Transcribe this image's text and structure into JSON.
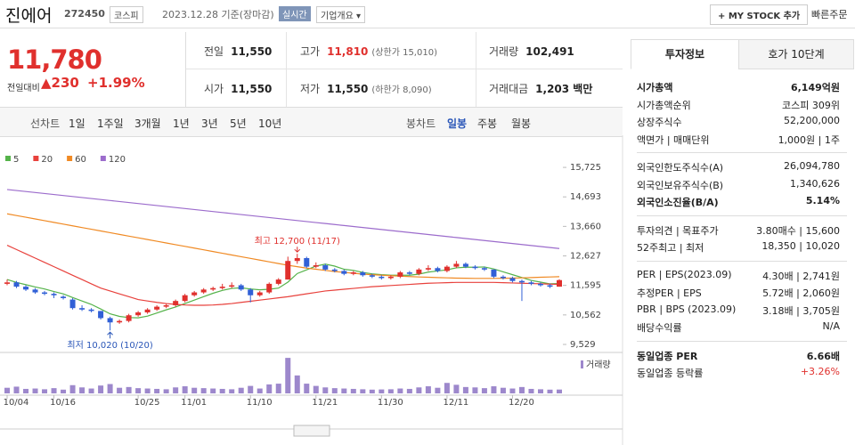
{
  "header": {
    "name": "진에어",
    "code": "272450",
    "market": "코스피",
    "date": "2023.12.28 기준(장마감)",
    "realtime": "실시간",
    "company_menu": "기업개요 ▾",
    "mystock": "+ MY STOCK 추가",
    "quick_order": "빠른주문"
  },
  "price": {
    "current": "11,780",
    "change_label": "전일대비",
    "change": "▲230",
    "change_rate": "+1.99%"
  },
  "stats": [
    [
      {
        "label": "전일",
        "value": "11,550"
      },
      {
        "label": "고가",
        "value": "11,810",
        "note": "(상한가 15,010)"
      },
      {
        "label": "거래량",
        "value": "102,491"
      }
    ],
    [
      {
        "label": "시가",
        "value": "11,550"
      },
      {
        "label": "저가",
        "value": "11,550",
        "note": "(하한가 8,090)"
      },
      {
        "label": "거래대금",
        "value": "1,203 백만"
      }
    ]
  ],
  "period_tabs": {
    "line_label": "선차트",
    "line": [
      "1일",
      "1주일",
      "3개월",
      "1년",
      "3년",
      "5년",
      "10년"
    ],
    "candle_label": "봉차트",
    "candle": [
      "일봉",
      "주봉",
      "월봉"
    ]
  },
  "chart": {
    "type": "candlestick",
    "up_color": "#e0302d",
    "down_color": "#3160d6",
    "ylim": [
      9280,
      16350
    ],
    "yticks": [
      {
        "value": 15725,
        "label": "15,725"
      },
      {
        "value": 14693,
        "label": "14,693"
      },
      {
        "value": 13660,
        "label": "13,660"
      },
      {
        "value": 12627,
        "label": "12,627"
      },
      {
        "value": 11595,
        "label": "11,595"
      },
      {
        "value": 10562,
        "label": "10,562"
      },
      {
        "value": 9529,
        "label": "9,529"
      }
    ],
    "categories": [
      "10/04",
      null,
      null,
      null,
      null,
      "10/16",
      null,
      null,
      null,
      null,
      null,
      null,
      null,
      null,
      "10/25",
      null,
      null,
      null,
      null,
      "11/01",
      null,
      null,
      null,
      null,
      null,
      null,
      "11/10",
      null,
      null,
      null,
      null,
      null,
      null,
      "11/21",
      null,
      null,
      null,
      null,
      null,
      null,
      "11/30",
      null,
      null,
      null,
      null,
      null,
      null,
      "12/11",
      null,
      null,
      null,
      null,
      null,
      null,
      "12/20",
      null,
      null,
      null,
      null,
      null
    ],
    "candles": [
      [
        11650,
        11800,
        11600,
        11700
      ],
      [
        11700,
        11750,
        11500,
        11550
      ],
      [
        11550,
        11600,
        11400,
        11450
      ],
      [
        11450,
        11500,
        11300,
        11350
      ],
      [
        11350,
        11400,
        11250,
        11300
      ],
      [
        11300,
        11350,
        11150,
        11250
      ],
      [
        11200,
        11250,
        11100,
        11150
      ],
      [
        11100,
        11150,
        10750,
        10800
      ],
      [
        10800,
        10900,
        10700,
        10750
      ],
      [
        10750,
        10800,
        10650,
        10700
      ],
      [
        10700,
        10700,
        10400,
        10450
      ],
      [
        10450,
        10500,
        10020,
        10300
      ],
      [
        10300,
        10400,
        10250,
        10350
      ],
      [
        10350,
        10600,
        10300,
        10550
      ],
      [
        10550,
        10700,
        10500,
        10650
      ],
      [
        10650,
        10800,
        10600,
        10750
      ],
      [
        10750,
        10900,
        10700,
        10850
      ],
      [
        10850,
        10950,
        10800,
        10900
      ],
      [
        10900,
        11100,
        10850,
        11050
      ],
      [
        11050,
        11300,
        11000,
        11250
      ],
      [
        11250,
        11400,
        11200,
        11350
      ],
      [
        11350,
        11500,
        11300,
        11450
      ],
      [
        11450,
        11550,
        11400,
        11500
      ],
      [
        11500,
        11650,
        11450,
        11550
      ],
      [
        11550,
        11700,
        11500,
        11600
      ],
      [
        11600,
        11650,
        11400,
        11450
      ],
      [
        11450,
        11500,
        11000,
        11250
      ],
      [
        11250,
        11400,
        11200,
        11350
      ],
      [
        11350,
        11700,
        11300,
        11650
      ],
      [
        11650,
        11850,
        11600,
        11800
      ],
      [
        11800,
        12600,
        11800,
        12450
      ],
      [
        12450,
        12700,
        12350,
        12550
      ],
      [
        12550,
        12600,
        12200,
        12250
      ],
      [
        12250,
        12400,
        12200,
        12300
      ],
      [
        12300,
        12350,
        12100,
        12150
      ],
      [
        12150,
        12200,
        12050,
        12100
      ],
      [
        12100,
        12150,
        11950,
        12000
      ],
      [
        12000,
        12100,
        11950,
        12050
      ],
      [
        12050,
        12100,
        11900,
        11950
      ],
      [
        11950,
        12000,
        11850,
        11900
      ],
      [
        11900,
        11950,
        11800,
        11850
      ],
      [
        11850,
        11950,
        11800,
        11900
      ],
      [
        11900,
        12100,
        11850,
        12050
      ],
      [
        12050,
        12100,
        11950,
        12000
      ],
      [
        12000,
        12200,
        11950,
        12150
      ],
      [
        12150,
        12300,
        12100,
        12200
      ],
      [
        12200,
        12250,
        12050,
        12100
      ],
      [
        12100,
        12300,
        12050,
        12250
      ],
      [
        12250,
        12450,
        12200,
        12350
      ],
      [
        12350,
        12400,
        12200,
        12250
      ],
      [
        12250,
        12300,
        12150,
        12200
      ],
      [
        12200,
        12250,
        12100,
        12150
      ],
      [
        12150,
        12150,
        11850,
        11900
      ],
      [
        11900,
        11950,
        11800,
        11850
      ],
      [
        11850,
        11900,
        11700,
        11750
      ],
      [
        11750,
        11800,
        11050,
        11700
      ],
      [
        11700,
        11750,
        11600,
        11650
      ],
      [
        11650,
        11700,
        11550,
        11600
      ],
      [
        11600,
        11650,
        11500,
        11550
      ],
      [
        11550,
        11810,
        11550,
        11780
      ]
    ],
    "ma": [
      {
        "name": "5",
        "color": "#55b34a",
        "values": [
          11800,
          11700,
          11620,
          11540,
          11470,
          11380,
          11300,
          11170,
          11050,
          10930,
          10770,
          10600,
          10510,
          10470,
          10460,
          10520,
          10630,
          10740,
          10840,
          10960,
          11080,
          11200,
          11320,
          11420,
          11490,
          11510,
          11470,
          11440,
          11460,
          11500,
          11710,
          12010,
          12140,
          12270,
          12340,
          12270,
          12160,
          12120,
          12050,
          12000,
          11970,
          11950,
          11950,
          11950,
          11990,
          12060,
          12100,
          12140,
          12210,
          12230,
          12230,
          12240,
          12170,
          12070,
          11970,
          11870,
          11770,
          11710,
          11650,
          11660
        ]
      },
      {
        "name": "20",
        "color": "#e8413c",
        "values": [
          13000,
          12850,
          12700,
          12550,
          12400,
          12250,
          12100,
          11950,
          11800,
          11650,
          11500,
          11400,
          11300,
          11200,
          11100,
          11050,
          11000,
          10960,
          10930,
          10910,
          10900,
          10900,
          10910,
          10930,
          10960,
          11000,
          11040,
          11080,
          11120,
          11160,
          11200,
          11250,
          11300,
          11350,
          11400,
          11430,
          11460,
          11490,
          11520,
          11550,
          11570,
          11590,
          11610,
          11630,
          11650,
          11670,
          11680,
          11690,
          11700,
          11700,
          11700,
          11700,
          11700,
          11690,
          11680,
          11670,
          11660,
          11650,
          11640,
          11630
        ]
      },
      {
        "name": "60",
        "color": "#f08a24",
        "values": [
          14100,
          14040,
          13980,
          13920,
          13860,
          13800,
          13740,
          13680,
          13620,
          13560,
          13500,
          13440,
          13380,
          13320,
          13260,
          13200,
          13140,
          13080,
          13020,
          12960,
          12900,
          12840,
          12780,
          12720,
          12660,
          12600,
          12540,
          12480,
          12420,
          12360,
          12300,
          12250,
          12200,
          12160,
          12120,
          12080,
          12050,
          12020,
          11990,
          11970,
          11950,
          11935,
          11920,
          11905,
          11890,
          11880,
          11870,
          11860,
          11850,
          11845,
          11840,
          11840,
          11840,
          11845,
          11850,
          11860,
          11870,
          11880,
          11890,
          11900
        ]
      },
      {
        "name": "120",
        "color": "#9c6ccc",
        "values": [
          14950,
          14915,
          14880,
          14845,
          14810,
          14775,
          14740,
          14705,
          14670,
          14635,
          14600,
          14565,
          14530,
          14495,
          14460,
          14425,
          14390,
          14355,
          14320,
          14285,
          14250,
          14215,
          14180,
          14145,
          14110,
          14075,
          14040,
          14005,
          13970,
          13935,
          13900,
          13865,
          13830,
          13795,
          13760,
          13725,
          13690,
          13655,
          13620,
          13585,
          13550,
          13515,
          13480,
          13445,
          13410,
          13375,
          13340,
          13305,
          13270,
          13235,
          13200,
          13165,
          13130,
          13095,
          13060,
          13025,
          12990,
          12955,
          12920,
          12885
        ]
      }
    ],
    "volume": {
      "name": "거래량",
      "color": "#9d88cc",
      "vlim": [
        0,
        1000000
      ],
      "values": [
        150000,
        180000,
        120000,
        130000,
        110000,
        140000,
        100000,
        220000,
        160000,
        130000,
        210000,
        250000,
        150000,
        170000,
        140000,
        130000,
        120000,
        110000,
        160000,
        190000,
        150000,
        140000,
        130000,
        120000,
        110000,
        150000,
        200000,
        130000,
        240000,
        260000,
        950000,
        480000,
        260000,
        200000,
        160000,
        140000,
        130000,
        120000,
        110000,
        100000,
        105000,
        110000,
        130000,
        120000,
        160000,
        190000,
        150000,
        280000,
        230000,
        170000,
        160000,
        140000,
        190000,
        150000,
        130000,
        170000,
        120000,
        110000,
        100000,
        102491
      ]
    },
    "annotations": {
      "high": "최고 12,700 (11/17)",
      "low": "최저 10,020 (10/20)"
    }
  },
  "info": {
    "tabs": [
      "투자정보",
      "호가 10단계"
    ],
    "groups": [
      [
        {
          "label": "시가총액",
          "value": "6,149억원",
          "bold": true
        },
        {
          "label": "시가총액순위",
          "value": "코스피 309위"
        },
        {
          "label": "상장주식수",
          "value": "52,200,000"
        },
        {
          "label": "액면가 | 매매단위",
          "value": "1,000원 | 1주"
        }
      ],
      [
        {
          "label": "외국인한도주식수(A)",
          "value": "26,094,780"
        },
        {
          "label": "외국인보유주식수(B)",
          "value": "1,340,626"
        },
        {
          "label": "외국인소진율(B/A)",
          "value": "5.14%",
          "bold": true
        }
      ],
      [
        {
          "label": "투자의견 | 목표주가",
          "value": "3.80매수 | 15,600"
        },
        {
          "label": "52주최고 | 최저",
          "value": "18,350 | 10,020"
        }
      ],
      [
        {
          "label": "PER | EPS(2023.09)",
          "value": "4.30배 | 2,741원"
        },
        {
          "label": "추정PER | EPS",
          "value": "5.72배 | 2,060원"
        },
        {
          "label": "PBR | BPS (2023.09)",
          "value": "3.18배 | 3,705원"
        },
        {
          "label": "배당수익률",
          "value": "N/A"
        }
      ],
      [
        {
          "label": "동일업종 PER",
          "value": "6.66배",
          "bold": true
        },
        {
          "label": "동일업종 등락률",
          "value": "+3.26%",
          "color": "#e0302d"
        }
      ]
    ]
  }
}
